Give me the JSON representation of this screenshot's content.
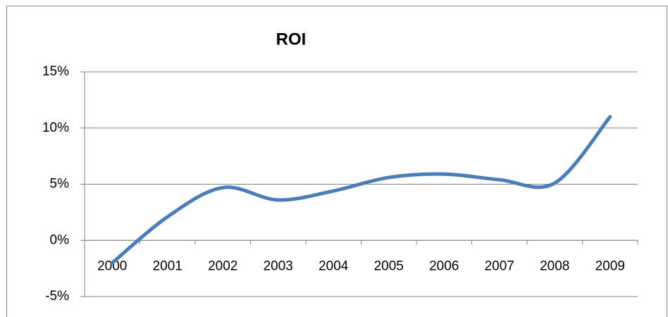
{
  "chart_data": {
    "type": "line",
    "title": "ROI",
    "categories": [
      "2000",
      "2001",
      "2002",
      "2003",
      "2004",
      "2005",
      "2006",
      "2007",
      "2008",
      "2009"
    ],
    "series": [
      {
        "name": "ROI",
        "color": "#4a7ebb",
        "values": [
          -2,
          2.1,
          4.7,
          3.6,
          4.4,
          5.6,
          5.9,
          5.4,
          5.1,
          11
        ]
      }
    ],
    "ylim": [
      -5,
      15
    ],
    "yticks": [
      {
        "value": -5,
        "label": "-5%"
      },
      {
        "value": 0,
        "label": "0%"
      },
      {
        "value": 5,
        "label": "5%"
      },
      {
        "value": 10,
        "label": "10%"
      },
      {
        "value": 15,
        "label": "15%"
      }
    ],
    "grid": true,
    "smooth": true
  }
}
